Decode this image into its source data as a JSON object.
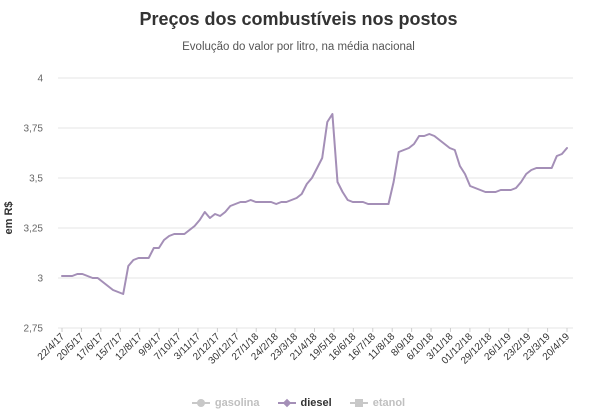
{
  "chart_data": {
    "type": "line",
    "title": "Preços dos combustíveis nos postos",
    "subtitle": "Evolução do valor por litro, na média nacional",
    "ylabel": "em R$",
    "ylim": [
      2.75,
      4
    ],
    "y_ticks": [
      "2,75",
      "3",
      "3,25",
      "3,5",
      "3,75",
      "4"
    ],
    "y_tick_values": [
      2.75,
      3,
      3.25,
      3.5,
      3.75,
      4
    ],
    "x_tick_labels": [
      "22/4/17",
      "20/5/17",
      "17/6/17",
      "15/7/17",
      "12/8/17",
      "9/9/17",
      "7/10/17",
      "3/11/17",
      "2/12/17",
      "30/12/17",
      "27/1/18",
      "24/2/18",
      "23/3/18",
      "21/4/18",
      "19/5/18",
      "16/6/18",
      "16/7/18",
      "11/8/18",
      "8/9/18",
      "6/10/18",
      "3/11/18",
      "01/12/18",
      "29/12/18",
      "26/1/19",
      "23/2/19",
      "23/3/19",
      "20/4/19"
    ],
    "legend_position": "bottom",
    "grid": true,
    "series": [
      {
        "name": "diesel",
        "color": "#a48fb7",
        "visible": true,
        "values": [
          3.01,
          3.01,
          3.01,
          3.02,
          3.02,
          3.01,
          3.0,
          3.0,
          2.98,
          2.96,
          2.94,
          2.93,
          2.92,
          3.06,
          3.09,
          3.1,
          3.1,
          3.1,
          3.15,
          3.15,
          3.19,
          3.21,
          3.22,
          3.22,
          3.22,
          3.24,
          3.26,
          3.29,
          3.33,
          3.3,
          3.32,
          3.31,
          3.33,
          3.36,
          3.37,
          3.38,
          3.38,
          3.39,
          3.38,
          3.38,
          3.38,
          3.38,
          3.37,
          3.38,
          3.38,
          3.39,
          3.4,
          3.42,
          3.47,
          3.5,
          3.55,
          3.6,
          3.78,
          3.82,
          3.48,
          3.43,
          3.39,
          3.38,
          3.38,
          3.38,
          3.37,
          3.37,
          3.37,
          3.37,
          3.37,
          3.48,
          3.63,
          3.64,
          3.65,
          3.67,
          3.71,
          3.71,
          3.72,
          3.71,
          3.69,
          3.67,
          3.65,
          3.64,
          3.56,
          3.52,
          3.46,
          3.45,
          3.44,
          3.43,
          3.43,
          3.43,
          3.44,
          3.44,
          3.44,
          3.45,
          3.48,
          3.52,
          3.54,
          3.55,
          3.55,
          3.55,
          3.55,
          3.61,
          3.62,
          3.65
        ]
      },
      {
        "name": "gasolina",
        "color": "#c8c8c8",
        "visible": false
      },
      {
        "name": "etanol",
        "color": "#c8c8c8",
        "visible": false
      }
    ]
  }
}
